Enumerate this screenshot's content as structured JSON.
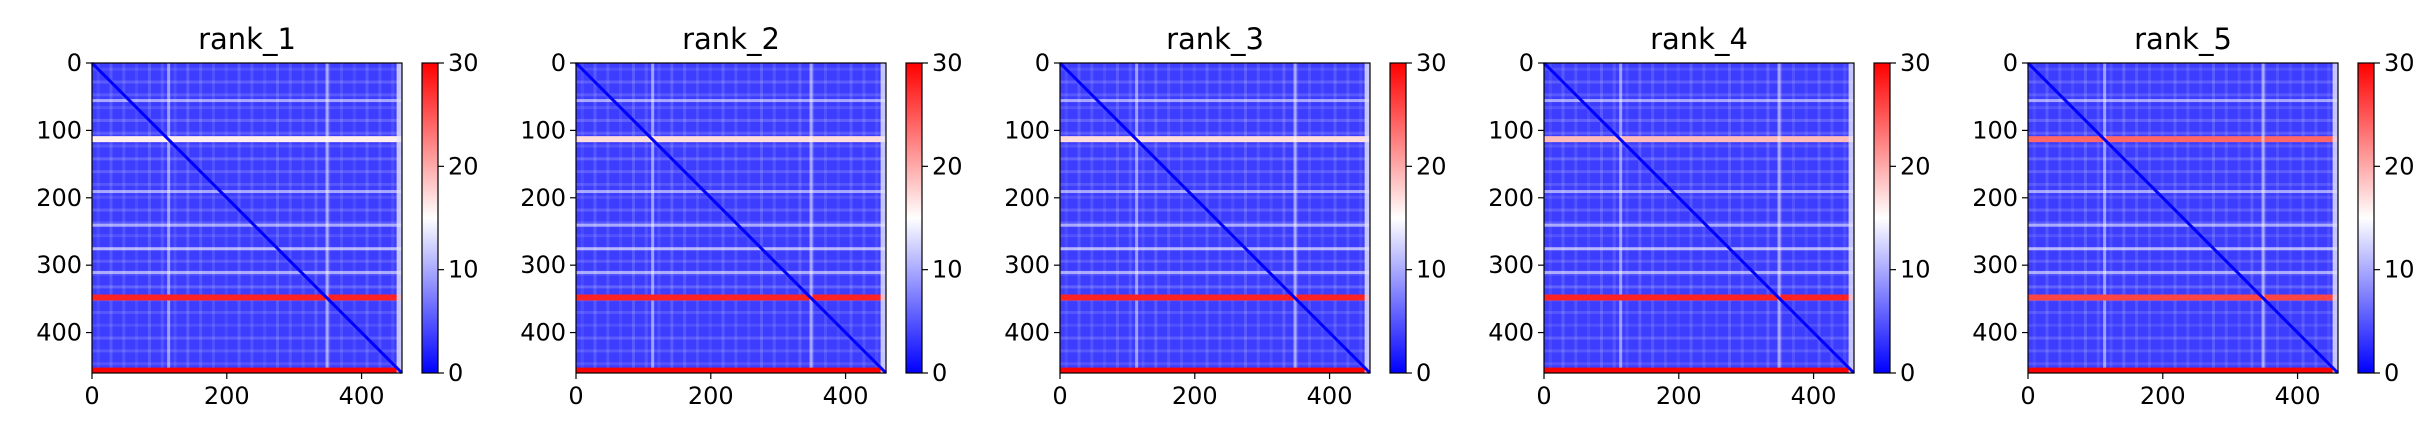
{
  "chart_data": [
    {
      "type": "heatmap",
      "title": "rank_1",
      "x_ticks": [
        0,
        200,
        400
      ],
      "y_ticks": [
        0,
        100,
        200,
        300,
        400
      ],
      "xlim": [
        0,
        460
      ],
      "ylim": [
        460,
        0
      ],
      "colorbar": {
        "cmap": "bwr",
        "ticks": [
          0,
          10,
          20,
          30
        ],
        "range": [
          0,
          30
        ]
      },
      "bright_rows": [
        {
          "at": 113,
          "value": 16
        },
        {
          "at": 348,
          "value": 28
        },
        {
          "at": 452,
          "value": 30
        }
      ]
    },
    {
      "type": "heatmap",
      "title": "rank_2",
      "x_ticks": [
        0,
        200,
        400
      ],
      "y_ticks": [
        0,
        100,
        200,
        300,
        400
      ],
      "xlim": [
        0,
        460
      ],
      "ylim": [
        460,
        0
      ],
      "colorbar": {
        "cmap": "bwr",
        "ticks": [
          0,
          10,
          20,
          30
        ],
        "range": [
          0,
          30
        ]
      },
      "bright_rows": [
        {
          "at": 113,
          "value": 17
        },
        {
          "at": 348,
          "value": 28
        },
        {
          "at": 452,
          "value": 30
        }
      ]
    },
    {
      "type": "heatmap",
      "title": "rank_3",
      "x_ticks": [
        0,
        200,
        400
      ],
      "y_ticks": [
        0,
        100,
        200,
        300,
        400
      ],
      "xlim": [
        0,
        460
      ],
      "ylim": [
        460,
        0
      ],
      "colorbar": {
        "cmap": "bwr",
        "ticks": [
          0,
          10,
          20,
          30
        ],
        "range": [
          0,
          30
        ]
      },
      "bright_rows": [
        {
          "at": 113,
          "value": 17
        },
        {
          "at": 348,
          "value": 28
        },
        {
          "at": 452,
          "value": 30
        }
      ]
    },
    {
      "type": "heatmap",
      "title": "rank_4",
      "x_ticks": [
        0,
        200,
        400
      ],
      "y_ticks": [
        0,
        100,
        200,
        300,
        400
      ],
      "xlim": [
        0,
        460
      ],
      "ylim": [
        460,
        0
      ],
      "colorbar": {
        "cmap": "bwr",
        "ticks": [
          0,
          10,
          20,
          30
        ],
        "range": [
          0,
          30
        ]
      },
      "bright_rows": [
        {
          "at": 113,
          "value": 19
        },
        {
          "at": 348,
          "value": 28
        },
        {
          "at": 452,
          "value": 30
        }
      ]
    },
    {
      "type": "heatmap",
      "title": "rank_5",
      "x_ticks": [
        0,
        200,
        400
      ],
      "y_ticks": [
        0,
        100,
        200,
        300,
        400
      ],
      "xlim": [
        0,
        460
      ],
      "ylim": [
        460,
        0
      ],
      "colorbar": {
        "cmap": "bwr",
        "ticks": [
          0,
          10,
          20,
          30
        ],
        "range": [
          0,
          30
        ]
      },
      "bright_rows": [
        {
          "at": 113,
          "value": 24
        },
        {
          "at": 348,
          "value": 26
        },
        {
          "at": 452,
          "value": 30
        }
      ]
    }
  ]
}
